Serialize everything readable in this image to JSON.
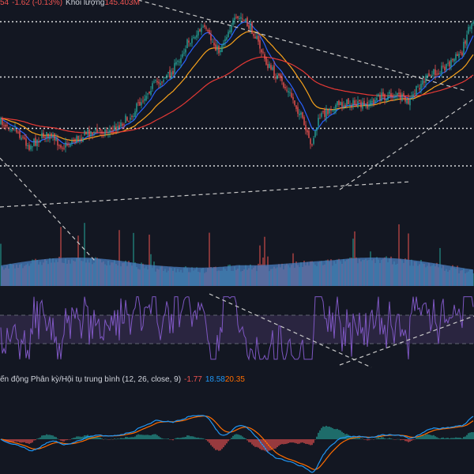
{
  "colors": {
    "background": "#131722",
    "up": "#26a69a",
    "down": "#ef5350",
    "ema_fast": "#2962ff",
    "ema_mid": "#f7a21b",
    "ema_slow": "#e53935",
    "volume": "#4a7fc1",
    "rsi_line": "#7e57c2",
    "rsi_band": "#2a2540",
    "macd_line": "#2196f3",
    "signal_line": "#ff6d00",
    "hist_pos": "#26a69a",
    "hist_neg": "#ef5350",
    "trendline": "#c8c8c8",
    "level_line": "#ffffff"
  },
  "main_legend": {
    "change_prefix": "54",
    "change": "-1.62 (-0.13%)",
    "volume_label": "Khối lượng",
    "volume_value": "145.403M"
  },
  "macd_legend": {
    "title": "ến động Phân kỳ/Hội tụ trung bình (12, 26, close, 9)",
    "histogram": "-1.77",
    "macd": "18.58",
    "signal": "20.35"
  },
  "chart_data": {
    "type": "candlestick",
    "panes": [
      "price",
      "volume",
      "rsi",
      "macd"
    ],
    "price_shape_pivots": [
      [
        0,
        0.58
      ],
      [
        8,
        0.6
      ],
      [
        18,
        0.7
      ],
      [
        28,
        0.64
      ],
      [
        40,
        0.7
      ],
      [
        55,
        0.63
      ],
      [
        70,
        0.62
      ],
      [
        82,
        0.55
      ],
      [
        95,
        0.4
      ],
      [
        108,
        0.33
      ],
      [
        118,
        0.18
      ],
      [
        128,
        0.1
      ],
      [
        138,
        0.22
      ],
      [
        146,
        0.08
      ],
      [
        152,
        0.05
      ],
      [
        160,
        0.12
      ],
      [
        168,
        0.28
      ],
      [
        176,
        0.36
      ],
      [
        184,
        0.45
      ],
      [
        190,
        0.55
      ],
      [
        196,
        0.7
      ],
      [
        202,
        0.55
      ],
      [
        210,
        0.5
      ],
      [
        220,
        0.48
      ],
      [
        230,
        0.5
      ],
      [
        240,
        0.45
      ],
      [
        250,
        0.44
      ],
      [
        258,
        0.48
      ],
      [
        266,
        0.38
      ],
      [
        274,
        0.33
      ],
      [
        284,
        0.28
      ],
      [
        292,
        0.22
      ],
      [
        296,
        0.1
      ],
      [
        300,
        0.05
      ]
    ],
    "level_lines_fraction_of_price_pane": [
      0.07,
      0.35,
      0.61,
      0.8
    ],
    "rsi_bands": [
      70,
      30
    ],
    "trendline_count": 6
  }
}
